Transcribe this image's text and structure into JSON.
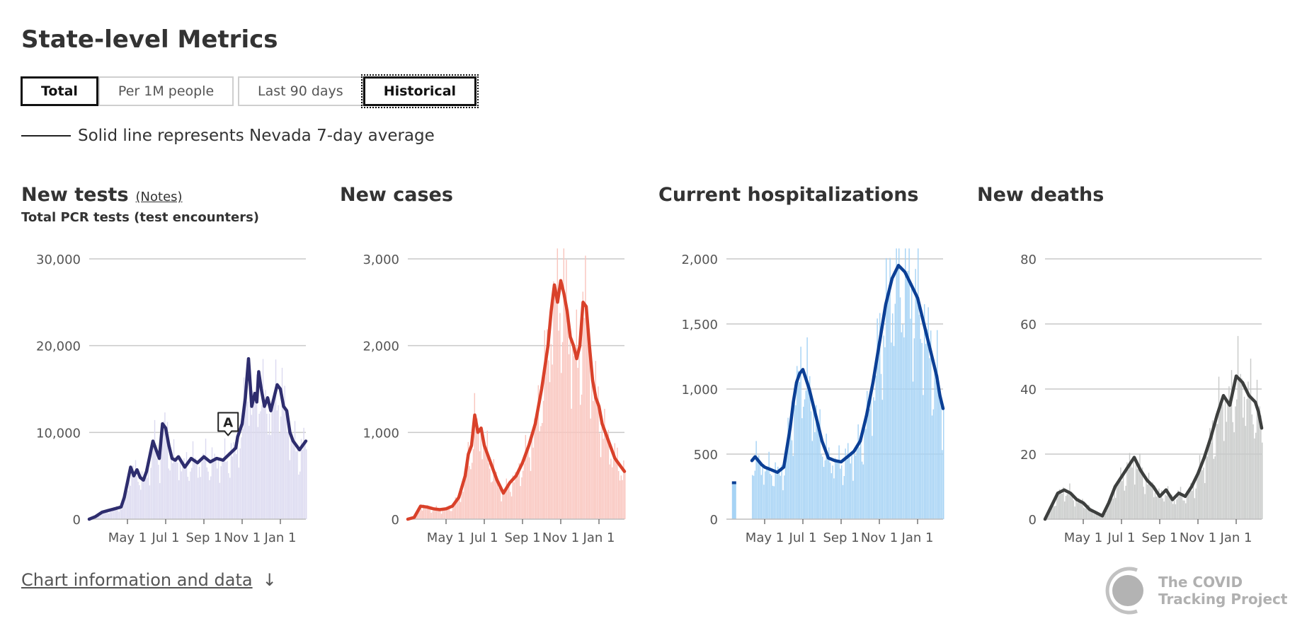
{
  "page_title": "State-level Metrics",
  "toggles": {
    "metric": [
      {
        "label": "Total",
        "active": true
      },
      {
        "label": "Per 1M people",
        "active": false
      }
    ],
    "range": [
      {
        "label": "Last 90 days",
        "active": false
      },
      {
        "label": "Historical",
        "active": true
      }
    ]
  },
  "legend_note": "Solid line represents Nevada 7-day average",
  "notes_link": "(Notes)",
  "chart_info_link": "Chart information and data",
  "chart_info_arrow": "↓",
  "brand": {
    "line1": "The COVID",
    "line2": "Tracking Project"
  },
  "chart_data": [
    {
      "type": "bar",
      "id": "tests",
      "title": "New tests",
      "subtitle": "Total PCR tests (test encounters)",
      "bar_color": "#dcdaf0",
      "line_color": "#2e2d6e",
      "ylim": [
        0,
        30000
      ],
      "yticks": [
        0,
        10000,
        20000,
        30000
      ],
      "ytick_labels": [
        "0",
        "10,000",
        "20,000",
        "30,000"
      ],
      "xlim": [
        0,
        340
      ],
      "xticks": [
        60,
        120,
        180,
        240,
        300
      ],
      "xtick_labels": [
        "May 1",
        "Jul 1",
        "Sep 1",
        "Nov 1",
        "Jan 1"
      ],
      "annotation": {
        "label": "A",
        "x": 218,
        "y": 9500
      },
      "average": {
        "x": [
          0,
          10,
          20,
          30,
          40,
          50,
          55,
          65,
          70,
          75,
          80,
          85,
          90,
          100,
          110,
          115,
          120,
          125,
          130,
          135,
          140,
          150,
          160,
          170,
          180,
          190,
          200,
          210,
          220,
          230,
          233,
          240,
          245,
          250,
          255,
          260,
          263,
          266,
          270,
          275,
          280,
          285,
          290,
          295,
          300,
          305,
          310,
          315,
          320,
          325,
          330,
          335,
          340
        ],
        "y": [
          0,
          300,
          800,
          1000,
          1200,
          1400,
          2500,
          6000,
          5000,
          5700,
          4800,
          4500,
          5500,
          9000,
          7000,
          11000,
          10500,
          8500,
          7000,
          6800,
          7200,
          6000,
          7000,
          6500,
          7200,
          6600,
          7000,
          6800,
          7500,
          8200,
          9500,
          11000,
          14000,
          18500,
          13000,
          14500,
          13500,
          17000,
          15000,
          13000,
          14000,
          12500,
          14000,
          15500,
          15000,
          13000,
          12500,
          10000,
          9000,
          8500,
          8000,
          8500,
          9000
        ]
      }
    },
    {
      "type": "bar",
      "id": "cases",
      "title": "New cases",
      "bar_color": "#f9c5be",
      "line_color": "#d9412a",
      "ylim": [
        0,
        3000
      ],
      "yticks": [
        0,
        1000,
        2000,
        3000
      ],
      "ytick_labels": [
        "0",
        "1,000",
        "2,000",
        "3,000"
      ],
      "xlim": [
        0,
        340
      ],
      "xticks": [
        60,
        120,
        180,
        240,
        300
      ],
      "xtick_labels": [
        "May 1",
        "Jul 1",
        "Sep 1",
        "Nov 1",
        "Jan 1"
      ],
      "average": {
        "x": [
          0,
          10,
          20,
          30,
          40,
          50,
          60,
          70,
          80,
          90,
          95,
          100,
          105,
          110,
          115,
          120,
          130,
          140,
          150,
          160,
          170,
          180,
          190,
          200,
          210,
          220,
          225,
          230,
          235,
          240,
          245,
          250,
          255,
          260,
          265,
          270,
          275,
          280,
          285,
          290,
          295,
          300,
          305,
          310,
          315,
          320,
          325,
          330,
          335,
          340
        ],
        "y": [
          0,
          20,
          150,
          140,
          120,
          110,
          120,
          150,
          250,
          500,
          750,
          850,
          1200,
          1000,
          1050,
          850,
          650,
          450,
          300,
          420,
          500,
          650,
          850,
          1100,
          1500,
          2000,
          2400,
          2700,
          2500,
          2750,
          2600,
          2400,
          2100,
          2000,
          1850,
          2000,
          2500,
          2450,
          2000,
          1600,
          1400,
          1300,
          1100,
          1000,
          900,
          800,
          700,
          650,
          600,
          550
        ]
      }
    },
    {
      "type": "bar",
      "id": "hospitalizations",
      "title": "Current hospitalizations",
      "bar_color": "#a6d3f5",
      "line_color": "#0b3f95",
      "ylim": [
        0,
        2000
      ],
      "yticks": [
        0,
        500,
        1000,
        1500,
        2000
      ],
      "ytick_labels": [
        "0",
        "500",
        "1,000",
        "1,500",
        "2,000"
      ],
      "xlim": [
        0,
        340
      ],
      "xticks": [
        60,
        120,
        180,
        240,
        300
      ],
      "xtick_labels": [
        "May 1",
        "Jul 1",
        "Sep 1",
        "Nov 1",
        "Jan 1"
      ],
      "isolated_bar": {
        "x": 12,
        "y": 280
      },
      "average": {
        "x": [
          40,
          45,
          50,
          55,
          60,
          70,
          80,
          90,
          100,
          105,
          110,
          115,
          120,
          130,
          140,
          150,
          160,
          170,
          180,
          190,
          200,
          210,
          220,
          230,
          240,
          250,
          260,
          270,
          280,
          290,
          300,
          310,
          320,
          330,
          335,
          340
        ],
        "y": [
          450,
          480,
          450,
          420,
          400,
          380,
          360,
          400,
          700,
          900,
          1050,
          1120,
          1150,
          1000,
          800,
          600,
          470,
          450,
          440,
          480,
          520,
          600,
          800,
          1050,
          1350,
          1650,
          1850,
          1950,
          1900,
          1800,
          1700,
          1500,
          1300,
          1100,
          950,
          850
        ]
      }
    },
    {
      "type": "bar",
      "id": "deaths",
      "title": "New deaths",
      "bar_color": "#c8cac9",
      "line_color": "#3d3f3e",
      "ylim": [
        0,
        80
      ],
      "yticks": [
        0,
        20,
        40,
        60,
        80
      ],
      "ytick_labels": [
        "0",
        "20",
        "40",
        "60",
        "80"
      ],
      "xlim": [
        0,
        340
      ],
      "xticks": [
        60,
        120,
        180,
        240,
        300
      ],
      "xtick_labels": [
        "May 1",
        "Jul 1",
        "Sep 1",
        "Nov 1",
        "Jan 1"
      ],
      "average": {
        "x": [
          0,
          10,
          20,
          30,
          40,
          50,
          60,
          70,
          80,
          90,
          100,
          110,
          120,
          130,
          140,
          150,
          160,
          170,
          180,
          190,
          200,
          210,
          220,
          230,
          240,
          250,
          260,
          270,
          280,
          290,
          300,
          310,
          320,
          330,
          335,
          340
        ],
        "y": [
          0,
          4,
          8,
          9,
          8,
          6,
          5,
          3,
          2,
          1,
          5,
          10,
          13,
          16,
          19,
          15,
          12,
          10,
          7,
          9,
          6,
          8,
          7,
          10,
          14,
          19,
          25,
          32,
          38,
          35,
          44,
          42,
          38,
          36,
          33,
          28
        ]
      }
    }
  ]
}
